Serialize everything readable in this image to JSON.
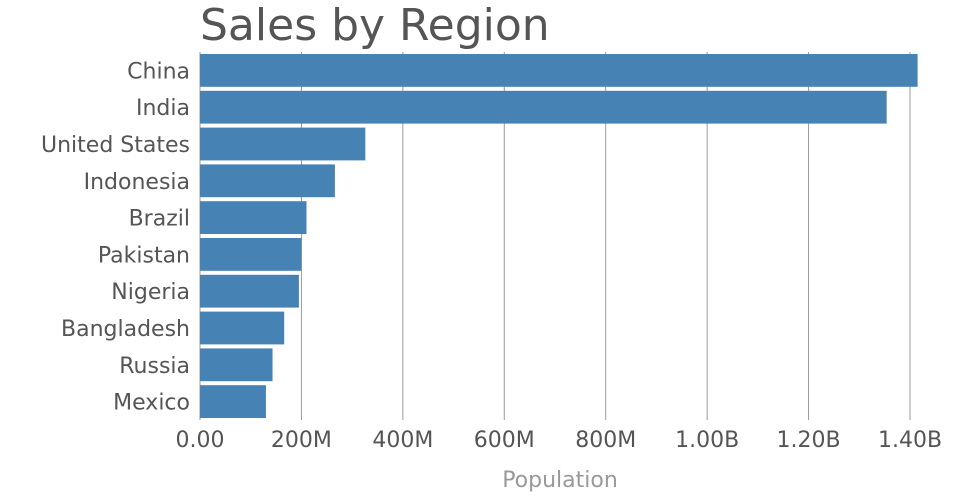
{
  "chart_data": {
    "type": "bar",
    "orientation": "horizontal",
    "title": "Sales by Region",
    "xlabel": "Population",
    "ylabel": "",
    "categories": [
      "China",
      "India",
      "United States",
      "Indonesia",
      "Brazil",
      "Pakistan",
      "Nigeria",
      "Bangladesh",
      "Russia",
      "Mexico"
    ],
    "values": [
      1415000000,
      1354000000,
      326000000,
      266000000,
      210000000,
      200000000,
      195000000,
      166000000,
      143000000,
      130000000
    ],
    "xlim": [
      0,
      1400000000
    ],
    "xticks": [
      0,
      200000000,
      400000000,
      600000000,
      800000000,
      1000000000,
      1200000000,
      1400000000
    ],
    "xtick_labels": [
      "0.00",
      "200M",
      "400M",
      "600M",
      "800M",
      "1.00B",
      "1.20B",
      "1.40B"
    ],
    "grid": true,
    "bar_color": "#4682b4"
  }
}
